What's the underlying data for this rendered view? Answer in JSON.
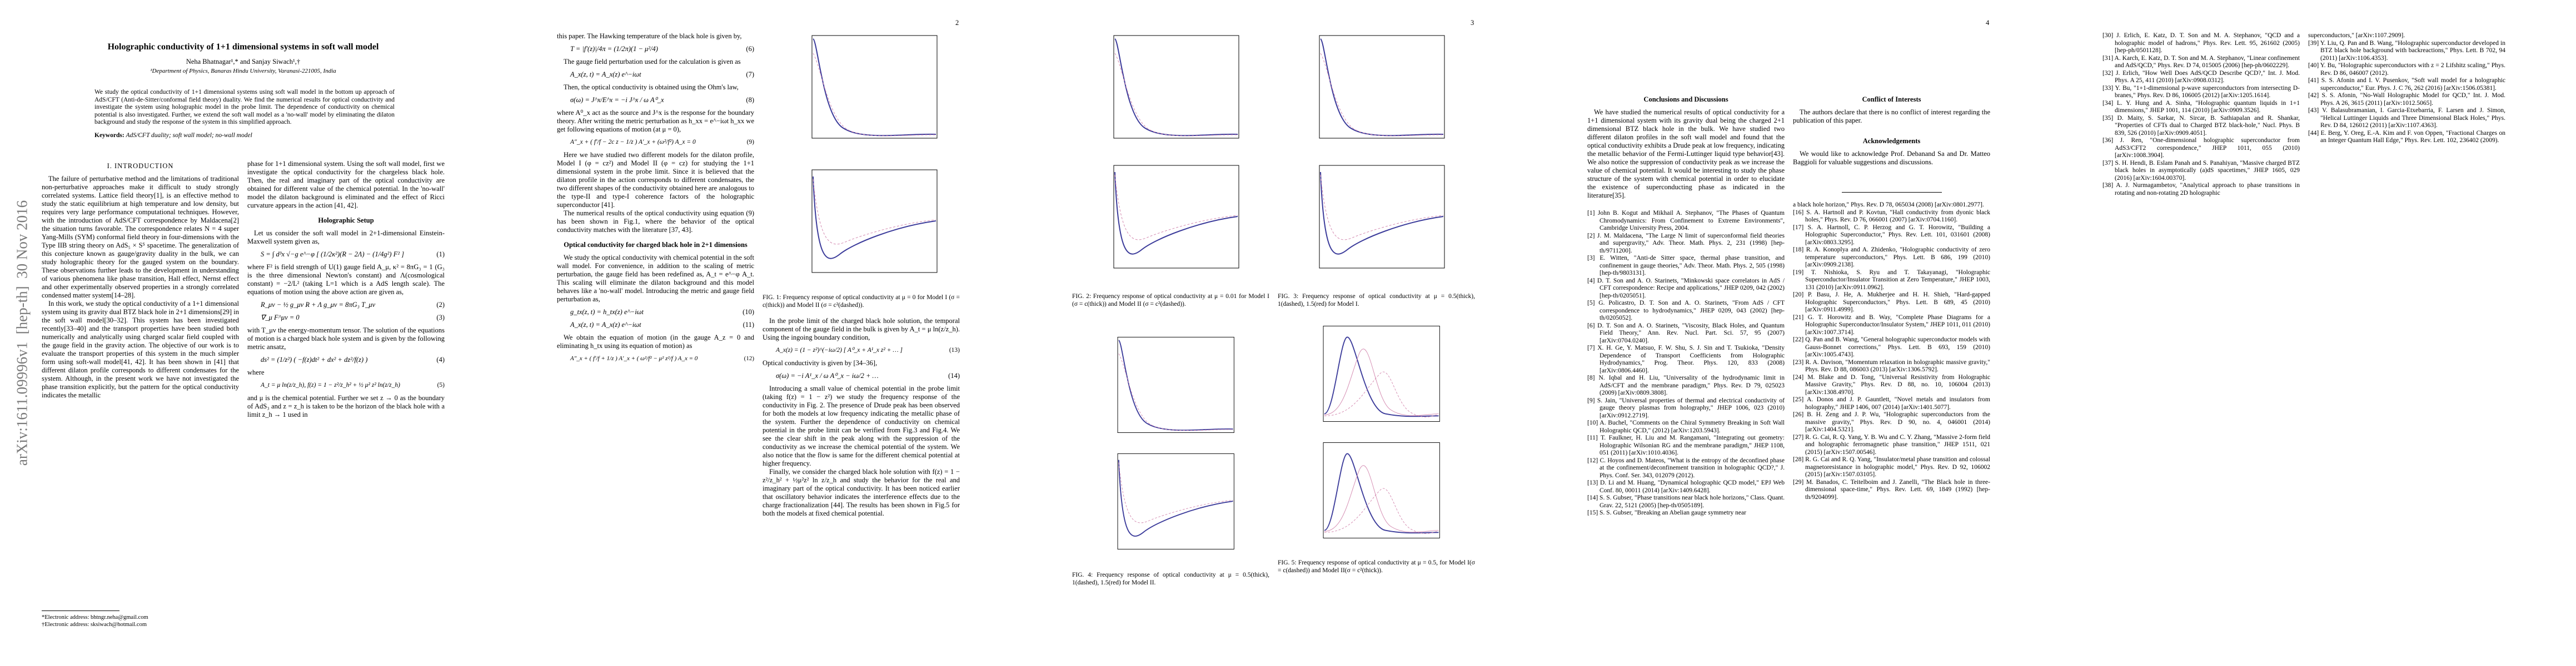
{
  "stamp": "arXiv:1611.09996v1  [hep-th]  30 Nov 2016",
  "page1": {
    "title": "Holographic conductivity of 1+1 dimensional systems in soft wall model",
    "authors": "Neha Bhatnagar¹,* and Sanjay Siwach¹,†",
    "affiliation": "¹Department of Physics, Banaras Hindu University, Varanasi-221005, India",
    "abstract": "We study the optical conductivity of 1+1 dimensional systems using soft wall model in the bottom up approach of AdS/CFT (Anti-de-Sitter/conformal field theory) duality. We find the numerical results for optical conductivity and investigate the system using holographic model in the probe limit. The dependence of conductivity on chemical potential is also investigated. Further, we extend the soft wall model as a 'no-wall' model by eliminating the dilaton background and study the response of the system in this simplified approach.",
    "keywords_label": "Keywords:",
    "keywords": "AdS/CFT duality; soft wall model; no-wall model",
    "section": "I.   INTRODUCTION",
    "intro": [
      "The failure of perturbative method and the limitations of traditional non-perturbative approaches make it difficult to study strongly correlated systems. Lattice field theory[1], is an effective method to study the static equilibrium at high temperature and low density, but requires very large performance computational techniques. However, with the introduction of AdS/CFT correspondence by Maldacena[2] the situation turns favorable. The correspondence relates N = 4 super Yang-Mills (SYM) conformal field theory in four-dimensions with the Type IIB string theory on AdS₅ × S⁵ spacetime. The generalization of this conjecture known as gauge/gravity duality in the bulk, we can study holographic theory for the gauged system on the boundary. These observations further leads to the development in understanding of various phenomena like phase transition, Hall effect, Nernst effect and other experimentally observed properties in a strongly correlated condensed matter system[14–28].",
      "In this work, we study the optical conductivity of a 1+1 dimensional system using its gravity dual BTZ black hole in 2+1 dimensions[29] in the soft wall model[30–32]. This system has been investigated recently[33–40] and the transport properties have been studied both numerically and analytically using charged scalar field coupled with the gauge field in the gravity action. The objective of our work is to evaluate the transport properties of this system in the much simpler form using soft-wall model[41, 42]. It has been shown in [41] that different dilaton profile corresponds to different condensates for the system. Although, in the present work we have not investigated the phase transition explicitly, but the pattern for the optical conductivity indicates the metallic"
    ],
    "footnotes": [
      "*Electronic address: bhtngr.neha@gmail.com",
      "†Electronic address: sksiwach@hotmail.com"
    ],
    "right_intro": "phase for 1+1 dimensional system. Using the soft wall model, first we investigate the optical conductivity for the chargeless black hole. Then, the real and imaginary part of the optical conductivity are obtained for different value of the chemical potential. In the 'no-wall' model the dilaton background is eliminated and the effect of Ricci curvature appears in the action [41, 42].",
    "setup_heading": "Holographic Setup",
    "setup": [
      "Let us consider the soft wall model in 2+1-dimensional Einstein-Maxwell system given as,",
      "where F² is field strength of U(1) gauge field A_μ, κ² = 8πG₃ = 1 (G₃ is the three dimensional Newton's constant) and Λ(cosmological constant) = −2/L² (taking L=1 which is a AdS length scale). The equations of motion using the above action are given as,",
      "with T_μν the energy-momentum tensor. The solution of the equations of motion is a charged black hole system and is given by the following metric ansatz,",
      "where",
      "and μ is the chemical potential. Further we set z → 0 as the boundary of AdS₃ and z = z_h is taken to be the horizon of the black hole with a limit z_h → 1 used in"
    ],
    "equations": [
      {
        "text": "S = ∫ d³x √−g e^−φ [ (1/2κ²)(R − 2Λ) − (1/4g²) F² ]",
        "number": "(1)"
      },
      {
        "text": "R_μν − ½ g_μν R + Λ g_μν = 8πG₃ T_μν",
        "number": "(2)"
      },
      {
        "text": "∇_μ F^μν = 0",
        "number": "(3)"
      },
      {
        "text": "ds² = (1/z²) ( −f(z)dt² + dx² + dz²/f(z) )",
        "number": "(4)"
      },
      {
        "text": "A_t = μ ln(z/z_h),   f(z) = 1 − z²/z_h² + ½ μ² z² ln(z/z_h)",
        "number": "(5)"
      }
    ]
  },
  "page2": {
    "number": "2",
    "left": [
      "this paper. The Hawking temperature of the black hole is given by,",
      "The gauge field perturbation used for the calculation is given as",
      "Then, the optical conductivity is obtained using the Ohm's law,",
      "where A⁰_x act as the source and J^x is the response for the boundary theory. After writing the metric perturbation as h_xx = e^−iωt h_xx we get following equations of motion (at μ = 0),",
      "Here we have studied two different models for the dilaton profile, Model I (φ = cz²) and Model II (φ = cz) for studying the 1+1 dimensional system in the probe limit. Since it is believed that the dilaton profile in the action corresponds to different condensates, the two different shapes of the conductivity obtained here are analogous to the type-II and type-I coherence factors of the holographic superconductor [41].",
      "The numerical results of the optical conductivity using equation (9) has been shown in Fig.1, where the behavior of the optical conductivity matches with the literature [37, 43].",
      "We study the optical conductivity with chemical potential in the soft wall model. For convenience, in addition to the scaling of metric perturbation, the gauge field has been redefined as, A_t = e^−φ A_t. This scaling will eliminate the dilaton background and this model behaves like a 'no-wall' model. Introducing the metric and gauge field perturbation as,",
      "We obtain the equation of motion (in the gauge A_z = 0 and eliminating h_tx using its equation of motion) as"
    ],
    "heading": "Optical conductivity for charged black hole in 2+1 dimensions",
    "equations": [
      {
        "text": "T = |f′(z)|/4π = (1/2π)(1 − μ²/4)",
        "number": "(6)"
      },
      {
        "text": "A_x(z, t) = A_x(z) e^−iωt",
        "number": "(7)"
      },
      {
        "text": "σ(ω) = J^x/E^x = −i J^x / ω A⁰_x",
        "number": "(8)"
      },
      {
        "text": "A″_x + ( f′/f − 2c z − 1/z ) A′_x + (ω²/f²) A_x = 0",
        "number": "(9)"
      },
      {
        "text": "g_tx(z, t) = h_tx(z) e^−iωt",
        "number": "(10)"
      },
      {
        "text": "A_x(z, t) = A_x(z) e^−iωt",
        "number": "(11)"
      },
      {
        "text": "A″_x + ( f′/f + 1/z ) A′_x + ( ω²/f² − μ² z²/f ) A_x = 0",
        "number": "(12)"
      }
    ],
    "caption": "FIG. 1: Frequency response of optical conductivity at μ = 0 for Model I (σ = c(thick)) and Model II (σ = c²(dashed)).",
    "right": [
      "In the probe limit of the charged black hole solution, the temporal component of the gauge field in the bulk is given by A_t = μ ln(z/z_h). Using the ingoing boundary condition,",
      "Optical conductivity is given by [34–36],",
      "Introducing a small value of chemical potential in the probe limit (taking f(z) = 1 − z²) we study the frequency response of the conductivity in Fig. 2. The presence of Drude peak has been observed for both the models at low frequency indicating the metallic phase of the system. Further the dependence of conductivity on chemical potential in the probe limit can be verified from Fig.3 and Fig.4. We see the clear shift in the peak along with the suppression of the conductivity as we increase the chemical potential of the system. We also notice that the flow is same for the different chemical potential at higher frequency.",
      "Finally, we consider the charged black hole solution with f(z) = 1 − z²/z_h² + ½μ²z² ln z/z_h and study the behavior for the real and imaginary part of the optical conductivity. It has been noticed earlier that oscillatory behavior indicates the interference effects due to the charge fractionalization [44]. The results has been shown in Fig.5 for both the models at fixed chemical potential."
    ],
    "right_equations": [
      {
        "text": "A_x(z) = (1 − z²)^(−iω/2) [ A⁰_x + A¹_x z² + … ]",
        "number": "(13)"
      },
      {
        "text": "σ(ω) = −i A¹_x / ω A⁰_x − iω/2 + …",
        "number": "(14)"
      }
    ]
  },
  "page3": {
    "number": "3",
    "captions": [
      "FIG. 2: Frequency response of optical conductivity at μ = 0.01 for Model I (σ = c(thick)) and Model II (σ = c²(dashed)).",
      "FIG. 3: Frequency response of optical conductivity at μ = 0.5(thick), 1(dashed), 1.5(red) for Model I.",
      "FIG. 4: Frequency response of optical conductivity at μ = 0.5(thick), 1(dashed), 1.5(red) for Model II.",
      "FIG. 5: Frequency response of optical conductivity at μ = 0.5, for Model I(σ = c(dashed)) and Model II(σ = c²(thick))."
    ]
  },
  "page4": {
    "number": "4",
    "conclusions_heading": "Conclusions and Discussions",
    "conclusions": "We have studied the numerical results of optical conductivity for a 1+1 dimensional system with its gravity dual being the charged 2+1 dimensional BTZ black hole in the bulk. We have studied two different dilaton profiles in the soft wall model and found that the optical conductivity exhibits a Drude peak at low frequency, indicating the metallic behavior of the Fermi-Luttinger liquid type behavior[43]. We also notice the suppression of conductivity peak as we increase the value of chemical potential. It would be interesting to study the phase structure of the system with chemical potential in order to elucidate the existence of superconducting phase as indicated in the literature[35].",
    "conflict_heading": "Conflict of Interests",
    "conflict": "The authors declare that there is no conflict of interest regarding the publication of this paper.",
    "ack_heading": "Acknowledgements",
    "ack": "We would like to acknowledge Prof. Debanand Sa and Dr. Matteo Baggioli for valuable suggestions and discussions.",
    "refs_left": [
      "[1] John B. Kogut and Mikhail A. Stephanov, \"The Phases of Quantum Chromodynamics: From Confinement to Extreme Environments\", Cambridge University Press, 2004.",
      "[2] J. M. Maldacena, \"The Large N limit of superconformal field theories and supergravity,\" Adv. Theor. Math. Phys. 2, 231 (1998) [hep-th/9711200].",
      "[3] E. Witten, \"Anti-de Sitter space, thermal phase transition, and confinement in gauge theories,\" Adv. Theor. Math. Phys. 2, 505 (1998) [hep-th/9803131].",
      "[4] D. T. Son and A. O. Starinets, \"Minkowski space correlators in AdS / CFT correspondence: Recipe and applications,\" JHEP 0209, 042 (2002) [hep-th/0205051].",
      "[5] G. Policastro, D. T. Son and A. O. Starinets, \"From AdS / CFT correspondence to hydrodynamics,\" JHEP 0209, 043 (2002) [hep-th/0205052].",
      "[6] D. T. Son and A. O. Starinets, \"Viscosity, Black Holes, and Quantum Field Theory,\" Ann. Rev. Nucl. Part. Sci. 57, 95 (2007) [arXiv:0704.0240].",
      "[7] X. H. Ge, Y. Matsuo, F. W. Shu, S. J. Sin and T. Tsukioka, \"Density Dependence of Transport Coefficients from Holographic Hydrodynamics,\" Prog. Theor. Phys. 120, 833 (2008) [arXiv:0806.4460].",
      "[8] N. Iqbal and H. Liu, \"Universality of the hydrodynamic limit in AdS/CFT and the membrane paradigm,\" Phys. Rev. D 79, 025023 (2009) [arXiv:0809.3808].",
      "[9] S. Jain, \"Universal properties of thermal and electrical conductivity of gauge theory plasmas from holography,\" JHEP 1006, 023 (2010) [arXiv:0912.2719].",
      "[10] A. Buchel, \"Comments on the Chiral Symmetry Breaking in Soft Wall Holographic QCD,\" (2012) [arXiv:1203.5943].",
      "[11] T. Faulkner, H. Liu and M. Rangamani, \"Integrating out geometry: Holographic Wilsonian RG and the membrane paradigm,\" JHEP 1108, 051 (2011) [arXiv:1010.4036].",
      "[12] C. Hoyos and D. Mateos, \"What is the entropy of the deconfined phase at the confinement/deconfinement transition in holographic QCD?,\" J. Phys. Conf. Ser. 343, 012079 (2012).",
      "[13] D. Li and M. Huang, \"Dynamical holographic QCD model,\" EPJ Web Conf. 80, 00011 (2014) [arXiv:1409.6428].",
      "[14] S. S. Gubser, \"Phase transitions near black hole horizons,\" Class. Quant. Grav. 22, 5121 (2005) [hep-th/0505189].",
      "[15] S. S. Gubser, \"Breaking an Abelian gauge symmetry near"
    ],
    "refs_right": [
      "a black hole horizon,\" Phys. Rev. D 78, 065034 (2008) [arXiv:0801.2977].",
      "[16] S. A. Hartnoll and P. Kovtun, \"Hall conductivity from dyonic black holes,\" Phys. Rev. D 76, 066001 (2007) [arXiv:0704.1160].",
      "[17] S. A. Hartnoll, C. P. Herzog and G. T. Horowitz, \"Building a Holographic Superconductor,\" Phys. Rev. Lett. 101, 031601 (2008) [arXiv:0803.3295].",
      "[18] R. A. Konoplya and A. Zhidenko, \"Holographic conductivity of zero temperature superconductors,\" Phys. Lett. B 686, 199 (2010) [arXiv:0909.2138].",
      "[19] T. Nishioka, S. Ryu and T. Takayanagi, \"Holographic Superconductor/Insulator Transition at Zero Temperature,\" JHEP 1003, 131 (2010) [arXiv:0911.0962].",
      "[20] P. Basu, J. He, A. Mukherjee and H. H. Shieh, \"Hard-gapped Holographic Superconductors,\" Phys. Lett. B 689, 45 (2010) [arXiv:0911.4999].",
      "[21] G. T. Horowitz and B. Way, \"Complete Phase Diagrams for a Holographic Superconductor/Insulator System,\" JHEP 1011, 011 (2010) [arXiv:1007.3714].",
      "[22] Q. Pan and B. Wang, \"General holographic superconductor models with Gauss-Bonnet corrections,\" Phys. Lett. B 693, 159 (2010) [arXiv:1005.4743].",
      "[23] R. A. Davison, \"Momentum relaxation in holographic massive gravity,\" Phys. Rev. D 88, 086003 (2013) [arXiv:1306.5792].",
      "[24] M. Blake and D. Tong, \"Universal Resistivity from Holographic Massive Gravity,\" Phys. Rev. D 88, no. 10, 106004 (2013) [arXiv:1308.4970].",
      "[25] A. Donos and J. P. Gauntlett, \"Novel metals and insulators from holography,\" JHEP 1406, 007 (2014) [arXiv:1401.5077].",
      "[26] B. H. Zeng and J. P. Wu, \"Holographic superconductors from the massive gravity,\" Phys. Rev. D 90, no. 4, 046001 (2014) [arXiv:1404.5321].",
      "[27] R. G. Cai, R. Q. Yang, Y. B. Wu and C. Y. Zhang, \"Massive 2-form field and holographic ferromagnetic phase transition,\" JHEP 1511, 021 (2015) [arXiv:1507.00546].",
      "[28] R. G. Cai and R. Q. Yang, \"Insulator/metal phase transition and colossal magnetoresistance in holographic model,\" Phys. Rev. D 92, 106002 (2015) [arXiv:1507.03105].",
      "[29] M. Banados, C. Teitelboim and J. Zanelli, \"The Black hole in three-dimensional space-time,\" Phys. Rev. Lett. 69, 1849 (1992) [hep-th/9204099]."
    ]
  },
  "page5": {
    "refs_left": [
      "[30] J. Erlich, E. Katz, D. T. Son and M. A. Stephanov, \"QCD and a holographic model of hadrons,\" Phys. Rev. Lett. 95, 261602 (2005) [hep-ph/0501128].",
      "[31] A. Karch, E. Katz, D. T. Son and M. A. Stephanov, \"Linear confinement and AdS/QCD,\" Phys. Rev. D 74, 015005 (2006) [hep-ph/0602229].",
      "[32] J. Erlich, \"How Well Does AdS/QCD Describe QCD?,\" Int. J. Mod. Phys. A 25, 411 (2010) [arXiv:0908.0312].",
      "[33] Y. Bu, \"1+1-dimensional p-wave superconductors from intersecting D-branes,\" Phys. Rev. D 86, 106005 (2012) [arXiv:1205.1614].",
      "[34] L. Y. Hung and A. Sinha, \"Holographic quantum liquids in 1+1 dimensions,\" JHEP 1001, 114 (2010) [arXiv:0909.3526].",
      "[35] D. Maity, S. Sarkar, N. Sircar, B. Sathiapalan and R. Shankar, \"Properties of CFTs dual to Charged BTZ black-hole,\" Nucl. Phys. B 839, 526 (2010) [arXiv:0909.4051].",
      "[36] J. Ren, \"One-dimensional holographic superconductor from AdS3/CFT2 correspondence,\" JHEP 1011, 055 (2010) [arXiv:1008.3904].",
      "[37] S. H. Hendi, B. Eslam Panah and S. Panahiyan, \"Massive charged BTZ black holes in asymptotically (a)dS spacetimes,\" JHEP 1605, 029 (2016) [arXiv:1604.00370].",
      "[38] A. J. Nurmagambetov, \"Analytical approach to phase transitions in rotating and non-rotating 2D holographic"
    ],
    "refs_right": [
      "superconductors,\" [arXiv:1107.2909].",
      "[39] Y. Liu, Q. Pan and B. Wang, \"Holographic superconductor developed in BTZ black hole background with backreactions,\" Phys. Lett. B 702, 94 (2011) [arXiv:1106.4353].",
      "[40] Y. Bu, \"Holographic superconductors with z = 2 Lifshitz scaling,\" Phys. Rev. D 86, 046007 (2012).",
      "[41] S. S. Afonin and I. V. Pusenkov, \"Soft wall model for a holographic superconductor,\" Eur. Phys. J. C 76, 262 (2016) [arXiv:1506.05381].",
      "[42] S. S. Afonin, \"No-Wall Holographic Model for QCD,\" Int. J. Mod. Phys. A 26, 3615 (2011) [arXiv:1012.5065].",
      "[43] V. Balasubramanian, I. Garcia-Etxebarria, F. Larsen and J. Simon, \"Helical Luttinger Liquids and Three Dimensional Black Holes,\" Phys. Rev. D 84, 126012 (2011) [arXiv:1107.4363].",
      "[44] E. Berg, Y. Oreg, E.-A. Kim and F. von Oppen, \"Fractional Charges on an Integer Quantum Hall Edge,\" Phys. Rev. Lett. 102, 236402 (2009)."
    ]
  }
}
